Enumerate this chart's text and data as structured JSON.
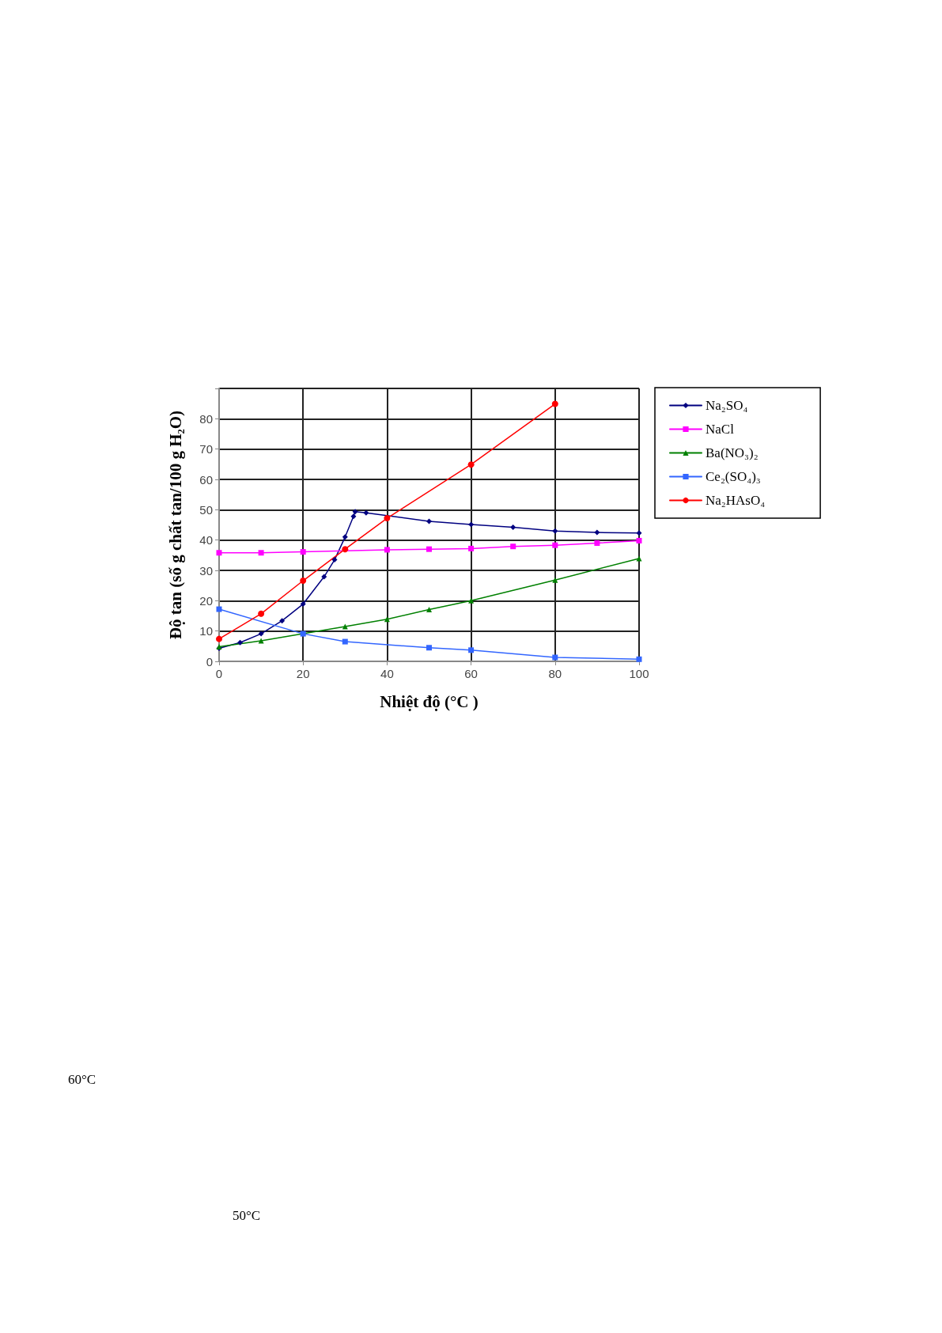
{
  "chart_data": {
    "type": "line",
    "xlabel": "Nhiệt độ (°C )",
    "ylabel": "Độ tan (số g chất tan/100 g H₂O)",
    "xlim": [
      0,
      100
    ],
    "xticks": [
      0,
      20,
      40,
      60,
      80,
      100
    ],
    "ylim": [
      0,
      90
    ],
    "yticks": [
      0,
      10,
      20,
      30,
      40,
      50,
      60,
      70,
      80,
      {
        "value": 90,
        "label": null
      }
    ],
    "grid": true,
    "legend": "right",
    "series": [
      {
        "name": "Na₂SO₄",
        "color": "#000080",
        "marker": "diamond",
        "x": [
          0,
          5,
          10,
          15,
          20,
          25,
          27.5,
          30,
          32,
          32.4,
          35,
          40,
          50,
          60,
          70,
          80,
          90,
          100
        ],
        "values": [
          4.3,
          6.2,
          9.1,
          13.4,
          18.9,
          27.9,
          33.5,
          41,
          47.8,
          49.4,
          49,
          null,
          46.2,
          45.1,
          44.2,
          43,
          42.5,
          42.3
        ]
      },
      {
        "name": "NaCl",
        "color": "#ff00ff",
        "marker": "square",
        "x": [
          0,
          10,
          20,
          30,
          40,
          50,
          60,
          70,
          80,
          90,
          100
        ],
        "values": [
          35.8,
          35.8,
          36.1,
          null,
          36.8,
          37,
          37.2,
          37.9,
          38.3,
          39,
          39.8
        ]
      },
      {
        "name": "Ba(NO₃)₂",
        "color": "#008000",
        "marker": "triangle",
        "x": [
          0,
          10,
          20,
          30,
          40,
          50,
          60,
          80,
          100
        ],
        "values": [
          4.8,
          6.8,
          null,
          11.5,
          13.9,
          17.1,
          20,
          26.8,
          33.9
        ]
      },
      {
        "name": "Ce₂(SO₄)₃",
        "color": "#3366ff",
        "marker": "square",
        "x": [
          0,
          20,
          30,
          50,
          60,
          80,
          100
        ],
        "values": [
          17.2,
          9.1,
          6.5,
          4.5,
          3.7,
          1.3,
          0.7
        ]
      },
      {
        "name": "Na₂HAsO₄",
        "color": "#ff0000",
        "marker": "circle",
        "x": [
          0,
          10,
          20,
          30,
          40,
          60,
          80
        ],
        "values": [
          7.4,
          15.7,
          26.6,
          37,
          47.2,
          64.9,
          84.9
        ]
      }
    ],
    "annotations": [
      "60°C",
      "50°C"
    ]
  }
}
